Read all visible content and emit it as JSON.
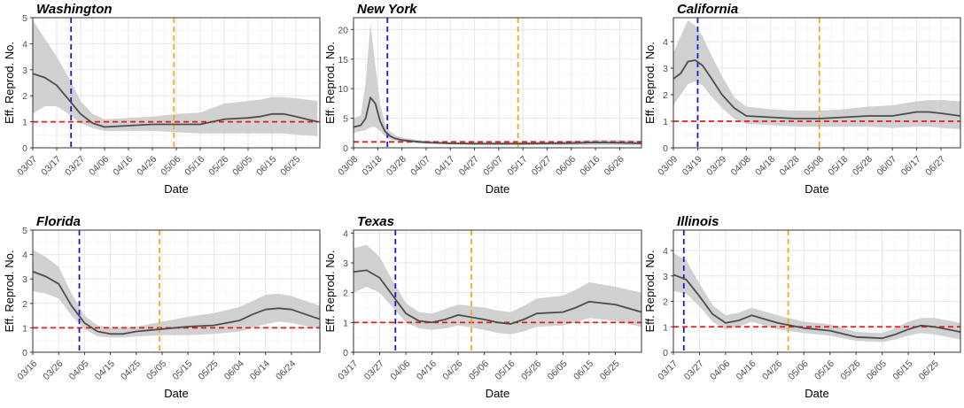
{
  "chart_data": [
    {
      "type": "line",
      "title": "Washington",
      "xlabel": "Date",
      "ylabel": "Eff. Reprod. No.",
      "start": "03/07",
      "days": 120,
      "ylim": [
        0,
        5
      ],
      "yticks": [
        0,
        1,
        2,
        3,
        4,
        5
      ],
      "xticks": [
        "03/07",
        "03/17",
        "03/27",
        "04/06",
        "04/16",
        "04/26",
        "05/06",
        "05/16",
        "05/26",
        "06/05",
        "06/15",
        "06/25"
      ],
      "vline_blue": "03/23",
      "vline_orange": "05/05",
      "hline": 1,
      "grid": true,
      "series": [
        {
          "x": [
            "03/07",
            "03/12",
            "03/17",
            "03/22",
            "03/27",
            "04/01",
            "04/06",
            "04/16",
            "04/26",
            "05/06",
            "05/16",
            "05/26",
            "06/05",
            "06/10",
            "06/15",
            "06/20",
            "06/25",
            "07/04"
          ],
          "y": [
            2.85,
            2.7,
            2.4,
            1.85,
            1.3,
            0.95,
            0.8,
            0.85,
            0.9,
            0.9,
            0.9,
            1.1,
            1.15,
            1.2,
            1.3,
            1.3,
            1.2,
            1.0
          ],
          "lower": [
            1.3,
            1.6,
            1.6,
            1.3,
            0.95,
            0.75,
            0.65,
            0.65,
            0.65,
            0.6,
            0.55,
            0.55,
            0.55,
            0.55,
            0.55,
            0.55,
            0.5,
            0.45
          ],
          "upper": [
            4.9,
            4.2,
            3.5,
            2.7,
            1.8,
            1.3,
            1.1,
            1.15,
            1.2,
            1.3,
            1.35,
            1.7,
            1.8,
            1.85,
            1.95,
            1.95,
            1.9,
            1.8
          ]
        }
      ]
    },
    {
      "type": "line",
      "title": "New York",
      "xlabel": "Date",
      "ylabel": "Eff. Reprod. No.",
      "start": "03/08",
      "days": 119,
      "ylim": [
        0,
        22
      ],
      "yticks": [
        0,
        5,
        10,
        15,
        20
      ],
      "xticks": [
        "03/08",
        "03/18",
        "03/28",
        "04/07",
        "04/17",
        "04/27",
        "05/07",
        "05/17",
        "05/27",
        "06/06",
        "06/16",
        "06/26"
      ],
      "vline_blue": "03/22",
      "vline_orange": "05/15",
      "hline": 1,
      "grid": true,
      "series": [
        {
          "x": [
            "03/08",
            "03/11",
            "03/13",
            "03/15",
            "03/17",
            "03/19",
            "03/21",
            "03/23",
            "03/25",
            "03/28",
            "04/02",
            "04/07",
            "04/17",
            "04/27",
            "05/07",
            "05/17",
            "05/27",
            "06/06",
            "06/16",
            "06/26",
            "07/05"
          ],
          "y": [
            3.5,
            3.8,
            5.0,
            8.5,
            7.5,
            4.5,
            2.8,
            2.0,
            1.6,
            1.3,
            1.1,
            0.9,
            0.75,
            0.7,
            0.7,
            0.7,
            0.75,
            0.8,
            0.9,
            0.85,
            0.75
          ],
          "lower": [
            2.5,
            2.8,
            3.0,
            3.5,
            3.5,
            2.8,
            2.0,
            1.5,
            1.2,
            1.0,
            0.85,
            0.7,
            0.55,
            0.5,
            0.5,
            0.45,
            0.45,
            0.45,
            0.45,
            0.45,
            0.4
          ],
          "upper": [
            5.0,
            5.5,
            11.0,
            21.0,
            14.0,
            7.5,
            4.0,
            2.8,
            2.2,
            1.7,
            1.4,
            1.15,
            1.0,
            0.95,
            0.95,
            1.0,
            1.05,
            1.2,
            1.35,
            1.3,
            1.2
          ]
        }
      ]
    },
    {
      "type": "line",
      "title": "California",
      "xlabel": "Date",
      "ylabel": "Eff. Reprod. No.",
      "start": "03/09",
      "days": 118,
      "ylim": [
        0,
        4.9
      ],
      "yticks": [
        0,
        1,
        2,
        3,
        4
      ],
      "xticks": [
        "03/09",
        "03/19",
        "03/29",
        "04/08",
        "04/18",
        "04/28",
        "05/08",
        "05/18",
        "05/28",
        "06/07",
        "06/17",
        "06/27"
      ],
      "vline_blue": "03/19",
      "vline_orange": "05/08",
      "hline": 1,
      "grid": true,
      "series": [
        {
          "x": [
            "03/09",
            "03/12",
            "03/15",
            "03/18",
            "03/21",
            "03/24",
            "03/29",
            "04/03",
            "04/08",
            "04/18",
            "04/28",
            "05/08",
            "05/18",
            "05/28",
            "06/07",
            "06/17",
            "06/22",
            "06/27",
            "07/05"
          ],
          "y": [
            2.6,
            2.8,
            3.25,
            3.3,
            3.1,
            2.7,
            2.0,
            1.5,
            1.2,
            1.15,
            1.1,
            1.1,
            1.15,
            1.2,
            1.2,
            1.35,
            1.35,
            1.3,
            1.2
          ],
          "lower": [
            1.6,
            2.0,
            2.4,
            2.5,
            2.35,
            2.0,
            1.5,
            1.1,
            0.9,
            0.85,
            0.8,
            0.8,
            0.8,
            0.8,
            0.75,
            0.8,
            0.8,
            0.75,
            0.7
          ],
          "upper": [
            3.6,
            4.2,
            4.8,
            4.6,
            4.2,
            3.6,
            2.7,
            1.9,
            1.55,
            1.45,
            1.4,
            1.4,
            1.45,
            1.55,
            1.6,
            1.75,
            1.8,
            1.8,
            1.75
          ]
        }
      ]
    },
    {
      "type": "line",
      "title": "Florida",
      "xlabel": "Date",
      "ylabel": "Eff. Reprod. No.",
      "start": "03/16",
      "days": 111,
      "ylim": [
        0,
        5
      ],
      "yticks": [
        0,
        1,
        2,
        3,
        4,
        5
      ],
      "xticks": [
        "03/16",
        "03/26",
        "04/05",
        "04/15",
        "04/25",
        "05/05",
        "05/15",
        "05/25",
        "06/04",
        "06/14",
        "06/24"
      ],
      "vline_blue": "04/03",
      "vline_orange": "05/04",
      "hline": 1,
      "grid": true,
      "series": [
        {
          "x": [
            "03/16",
            "03/21",
            "03/26",
            "03/31",
            "04/05",
            "04/10",
            "04/15",
            "04/20",
            "04/25",
            "05/05",
            "05/15",
            "05/25",
            "06/04",
            "06/09",
            "06/14",
            "06/19",
            "06/24",
            "07/05"
          ],
          "y": [
            3.3,
            3.1,
            2.8,
            1.9,
            1.2,
            0.85,
            0.75,
            0.75,
            0.85,
            0.95,
            1.05,
            1.1,
            1.3,
            1.55,
            1.75,
            1.8,
            1.75,
            1.35
          ],
          "lower": [
            2.5,
            2.4,
            2.2,
            1.5,
            0.95,
            0.65,
            0.6,
            0.6,
            0.65,
            0.7,
            0.7,
            0.75,
            0.85,
            1.0,
            1.15,
            1.25,
            1.2,
            0.95
          ],
          "upper": [
            4.2,
            3.9,
            3.5,
            2.4,
            1.5,
            1.1,
            1.0,
            1.0,
            1.05,
            1.25,
            1.45,
            1.6,
            1.85,
            2.1,
            2.35,
            2.4,
            2.3,
            1.9
          ]
        }
      ]
    },
    {
      "type": "line",
      "title": "Texas",
      "xlabel": "Date",
      "ylabel": "Eff. Reprod. No.",
      "start": "03/17",
      "days": 110,
      "ylim": [
        0,
        4.1
      ],
      "yticks": [
        0,
        1,
        2,
        3,
        4
      ],
      "xticks": [
        "03/17",
        "03/27",
        "04/06",
        "04/16",
        "04/26",
        "05/06",
        "05/16",
        "05/26",
        "06/05",
        "06/15",
        "06/25"
      ],
      "vline_blue": "04/02",
      "vline_orange": "05/01",
      "hline": 1,
      "grid": true,
      "series": [
        {
          "x": [
            "03/17",
            "03/22",
            "03/27",
            "04/01",
            "04/06",
            "04/11",
            "04/16",
            "04/21",
            "04/26",
            "05/06",
            "05/11",
            "05/16",
            "05/21",
            "05/26",
            "06/05",
            "06/10",
            "06/15",
            "06/25",
            "07/05"
          ],
          "y": [
            2.7,
            2.75,
            2.5,
            1.9,
            1.3,
            1.05,
            1.0,
            1.1,
            1.25,
            1.1,
            1.0,
            0.95,
            1.1,
            1.3,
            1.35,
            1.5,
            1.7,
            1.6,
            1.35
          ],
          "lower": [
            2.0,
            2.2,
            2.0,
            1.5,
            1.0,
            0.8,
            0.75,
            0.8,
            0.9,
            0.75,
            0.65,
            0.6,
            0.7,
            0.85,
            0.9,
            1.0,
            1.15,
            1.05,
            0.85
          ],
          "upper": [
            3.5,
            3.6,
            3.2,
            2.4,
            1.65,
            1.35,
            1.3,
            1.45,
            1.6,
            1.5,
            1.4,
            1.35,
            1.55,
            1.8,
            1.9,
            2.1,
            2.35,
            2.2,
            2.0
          ]
        }
      ]
    },
    {
      "type": "line",
      "title": "Illinois",
      "xlabel": "Date",
      "ylabel": "Eff. Reprod. No.",
      "start": "03/17",
      "days": 110,
      "ylim": [
        0,
        4.8
      ],
      "yticks": [
        0,
        1,
        2,
        3,
        4
      ],
      "xticks": [
        "03/17",
        "03/27",
        "04/06",
        "04/16",
        "04/26",
        "05/06",
        "05/16",
        "05/26",
        "06/05",
        "06/15",
        "06/25"
      ],
      "vline_blue": "03/21",
      "vline_orange": "04/30",
      "hline": 1,
      "grid": true,
      "series": [
        {
          "x": [
            "03/17",
            "03/22",
            "03/27",
            "04/01",
            "04/06",
            "04/11",
            "04/16",
            "04/21",
            "04/26",
            "05/06",
            "05/16",
            "05/26",
            "06/05",
            "06/10",
            "06/15",
            "06/20",
            "06/25",
            "07/05"
          ],
          "y": [
            3.05,
            2.85,
            2.2,
            1.5,
            1.15,
            1.25,
            1.45,
            1.3,
            1.15,
            0.95,
            0.85,
            0.6,
            0.55,
            0.7,
            0.9,
            1.05,
            1.0,
            0.8
          ],
          "lower": [
            2.4,
            2.3,
            1.8,
            1.2,
            0.9,
            1.0,
            1.2,
            1.05,
            0.9,
            0.75,
            0.65,
            0.45,
            0.4,
            0.5,
            0.65,
            0.75,
            0.7,
            0.5
          ],
          "upper": [
            3.9,
            3.6,
            2.7,
            1.85,
            1.45,
            1.55,
            1.75,
            1.6,
            1.45,
            1.2,
            1.1,
            0.8,
            0.75,
            0.95,
            1.2,
            1.35,
            1.35,
            1.15
          ]
        }
      ]
    }
  ]
}
